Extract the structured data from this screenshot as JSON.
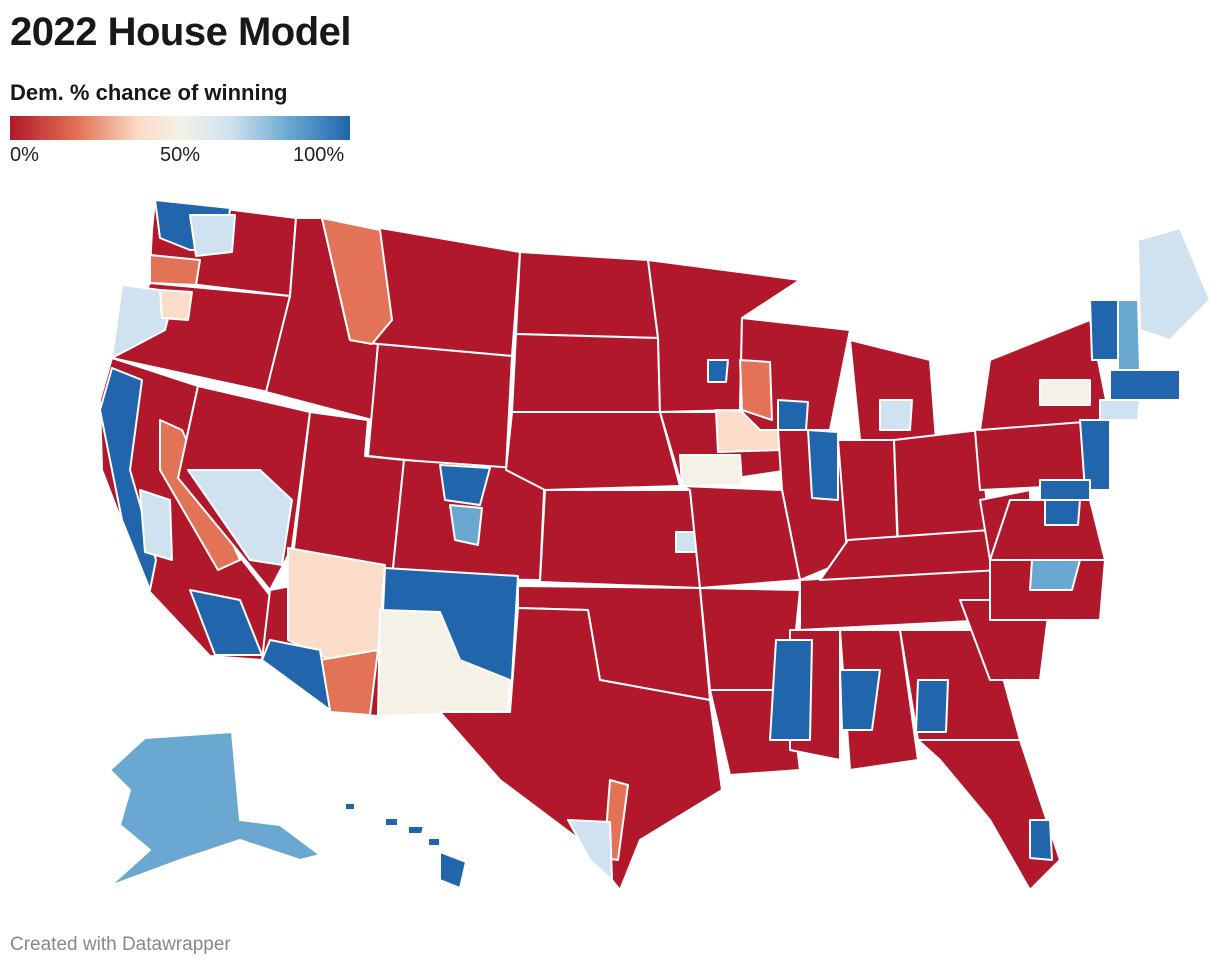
{
  "title": "2022 House Model",
  "legend": {
    "title": "Dem. % chance of winning",
    "ticks": [
      "0%",
      "50%",
      "100%"
    ],
    "colors": [
      "#b2182b",
      "#e27357",
      "#fbdcc8",
      "#f4f1e6",
      "#d0e2ef",
      "#6aa8d2",
      "#2166ac"
    ]
  },
  "footer": "Created with Datawrapper",
  "map": {
    "type": "choropleth",
    "region": "United States congressional districts",
    "metric": "Dem. % chance of winning",
    "colors": {
      "safe_rep": "#b2182b",
      "lean_rep": "#e27357",
      "tilt_rep": "#fbdcc8",
      "tossup": "#f4f1e6",
      "tilt_dem": "#d0e2ef",
      "lean_dem": "#6aa8d2",
      "safe_dem": "#2166ac",
      "border": "#ffffff"
    }
  }
}
